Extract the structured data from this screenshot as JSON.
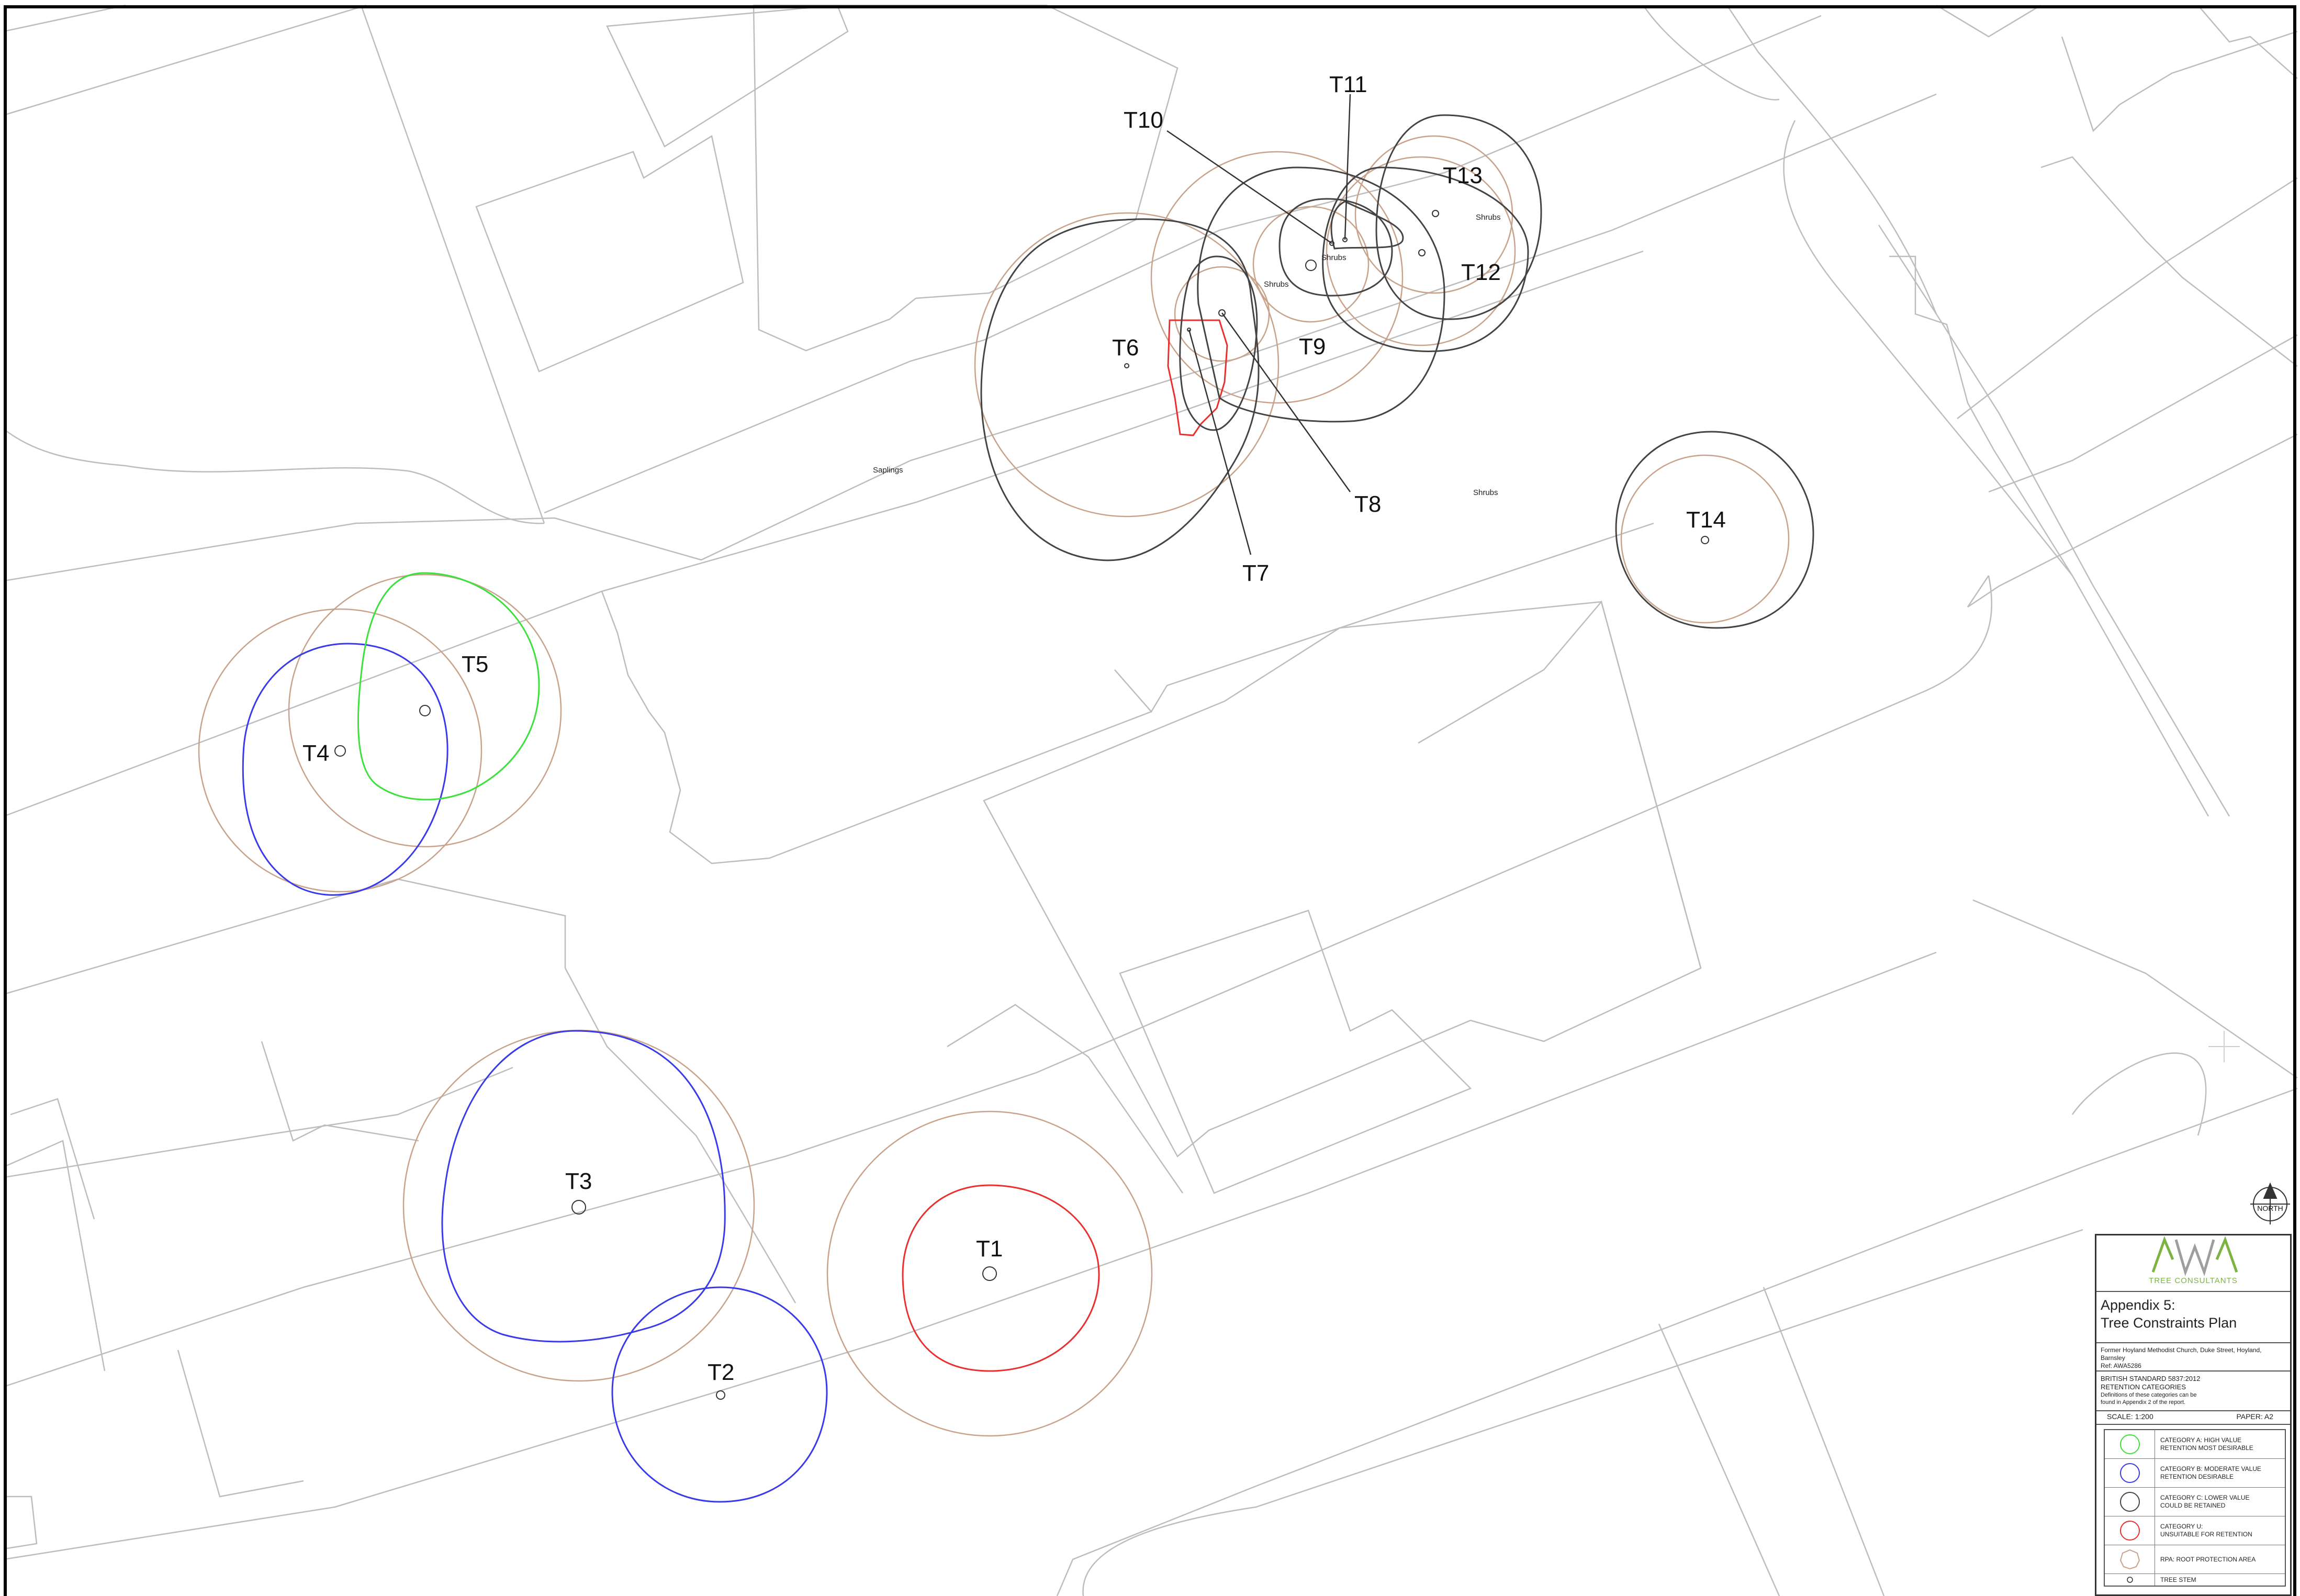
{
  "trees": [
    {
      "id": "T1",
      "category": "U"
    },
    {
      "id": "T2",
      "category": "B"
    },
    {
      "id": "T3",
      "category": "B"
    },
    {
      "id": "T4",
      "category": "B"
    },
    {
      "id": "T5",
      "category": "A"
    },
    {
      "id": "T6",
      "category": "C"
    },
    {
      "id": "T7",
      "category": "U"
    },
    {
      "id": "T8",
      "category": "C"
    },
    {
      "id": "T9",
      "category": "C"
    },
    {
      "id": "T10",
      "category": "C"
    },
    {
      "id": "T11",
      "category": "C"
    },
    {
      "id": "T12",
      "category": "C"
    },
    {
      "id": "T13",
      "category": "C"
    },
    {
      "id": "T14",
      "category": "C"
    }
  ],
  "annotations": [
    "Shrubs",
    "Shrubs",
    "Shrubs",
    "Shrubs",
    "Saplings"
  ],
  "north_label": "NORTH",
  "colors": {
    "category_a": "#3ee03e",
    "category_b": "#3a3ae8",
    "category_c": "#444444",
    "category_u": "#e83030",
    "rpa": "#c8a28a",
    "base": "#bdbdbd",
    "logo_green": "#7cb342"
  },
  "title_block": {
    "logo_text": "TREE CONSULTANTS",
    "title_line1": "Appendix 5:",
    "title_line2": "Tree Constraints Plan",
    "address": "Former Hoyland Methodist Church, Duke Street, Hoyland, Barnsley",
    "ref": "Ref: AWA5286",
    "standard": "BRITISH STANDARD 5837:2012",
    "retention": "RETENTION CATEGORIES",
    "note_line1": "Definitions of these categories can be",
    "note_line2": "found in Appendix 2 of the report.",
    "scale": "SCALE: 1:200",
    "paper": "PAPER: A2"
  },
  "legend": [
    {
      "key": "category_a",
      "text": "CATEGORY A: HIGH VALUE\nRETENTION MOST DESIRABLE"
    },
    {
      "key": "category_b",
      "text": "CATEGORY B: MODERATE VALUE\nRETENTION DESIRABLE"
    },
    {
      "key": "category_c",
      "text": "CATEGORY C: LOWER VALUE\nCOULD BE RETAINED"
    },
    {
      "key": "category_u",
      "text": "CATEGORY U:\nUNSUITABLE FOR RETENTION"
    },
    {
      "key": "rpa",
      "text": "RPA: ROOT PROTECTION AREA"
    },
    {
      "key": "stem",
      "text": "TREE STEM"
    }
  ]
}
